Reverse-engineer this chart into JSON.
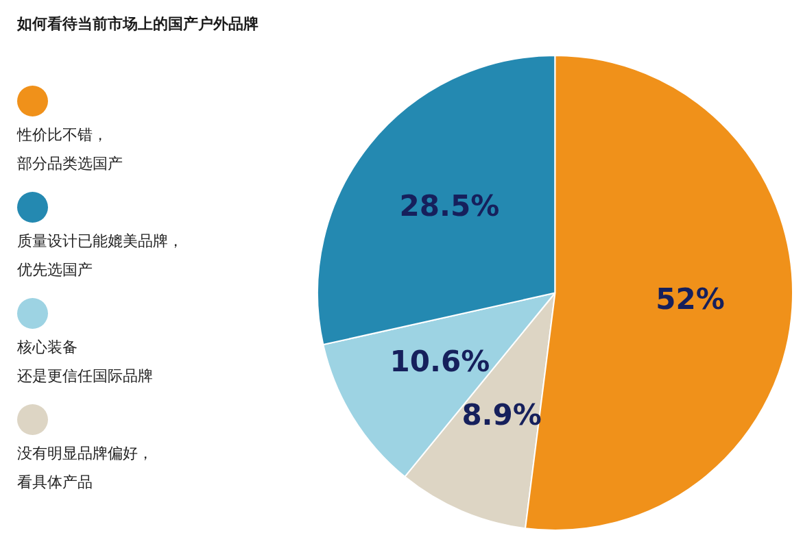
{
  "chart_data": {
    "type": "pie",
    "title": "如何看待当前市场上的国产户外品牌",
    "categories": [
      "性价比不错，部分品类选国产",
      "质量设计已能媲美品牌，优先选国产",
      "核心装备还是更信任国际品牌",
      "没有明显品牌偏好，看具体产品"
    ],
    "values": [
      52,
      28.5,
      10.6,
      8.9
    ],
    "colors": [
      "#f0911a",
      "#2489b1",
      "#9dd3e3",
      "#ddd5c4"
    ],
    "value_labels": [
      "52%",
      "28.5%",
      "10.6%",
      "8.9%"
    ],
    "legend": "left"
  }
}
